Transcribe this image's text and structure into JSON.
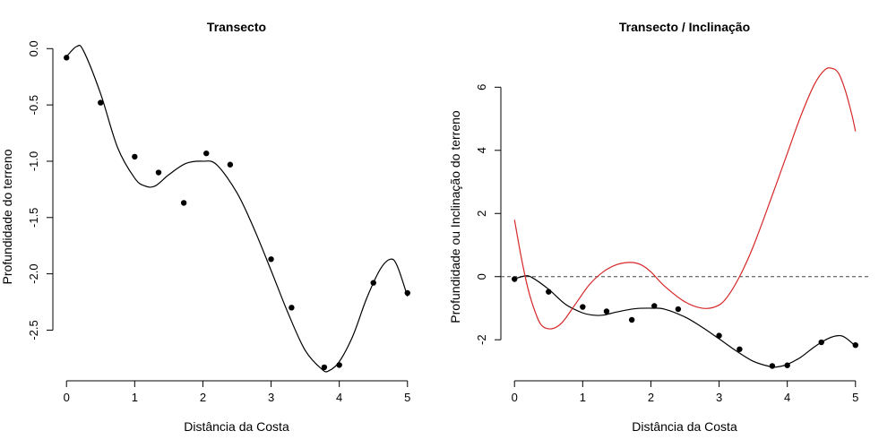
{
  "chart_data": [
    {
      "type": "scatter",
      "title": "Transecto",
      "xlabel": "Distância da Costa",
      "ylabel": "Profundidade do terreno",
      "xlim": [
        -0.2,
        5.2
      ],
      "ylim": [
        -2.95,
        0.05
      ],
      "xticks": [
        "0",
        "1",
        "2",
        "3",
        "4",
        "5"
      ],
      "yticks": [
        "0.0",
        "-0.5",
        "-1.0",
        "-1.5",
        "-2.0",
        "-2.5"
      ],
      "series": [
        {
          "style": "points",
          "x": [
            0,
            0.5,
            1,
            1.35,
            1.72,
            2.05,
            2.4,
            3.0,
            3.3,
            3.78,
            4.0,
            4.5,
            5.0
          ],
          "y": [
            -0.08,
            -0.48,
            -0.96,
            -1.1,
            -1.37,
            -0.93,
            -1.03,
            -1.87,
            -2.3,
            -2.83,
            -2.81,
            -2.08,
            -2.17
          ]
        },
        {
          "style": "curve",
          "color": "#000000",
          "x": [
            0,
            0.15,
            0.25,
            0.5,
            0.75,
            1.0,
            1.15,
            1.3,
            1.5,
            1.75,
            2.0,
            2.2,
            2.5,
            2.75,
            3.0,
            3.25,
            3.5,
            3.75,
            3.85,
            4.0,
            4.2,
            4.4,
            4.6,
            4.75,
            4.85,
            5.0
          ],
          "y": [
            -0.07,
            0.02,
            -0.02,
            -0.4,
            -0.88,
            -1.15,
            -1.22,
            -1.22,
            -1.12,
            -1.02,
            -1.0,
            -1.03,
            -1.28,
            -1.6,
            -1.97,
            -2.35,
            -2.68,
            -2.85,
            -2.86,
            -2.78,
            -2.55,
            -2.22,
            -1.96,
            -1.87,
            -1.93,
            -2.2
          ]
        }
      ]
    },
    {
      "type": "line",
      "title": "Transecto / Inclinação",
      "xlabel": "Distância da Costa",
      "ylabel": "Profundidade ou Inclinação do terreno",
      "xlim": [
        -0.2,
        5.2
      ],
      "ylim": [
        -3.3,
        7.4
      ],
      "xticks": [
        "0",
        "1",
        "2",
        "3",
        "4",
        "5"
      ],
      "yticks": [
        "-2",
        "0",
        "2",
        "4",
        "6"
      ],
      "reference_line": {
        "y": 0,
        "style": "dashed"
      },
      "series": [
        {
          "style": "points",
          "x": [
            0,
            0.5,
            1,
            1.35,
            1.72,
            2.05,
            2.4,
            3.0,
            3.3,
            3.78,
            4.0,
            4.5,
            5.0
          ],
          "y": [
            -0.08,
            -0.48,
            -0.96,
            -1.1,
            -1.37,
            -0.93,
            -1.03,
            -1.87,
            -2.3,
            -2.83,
            -2.81,
            -2.08,
            -2.17
          ]
        },
        {
          "style": "curve",
          "color": "#000000",
          "x": [
            0,
            0.15,
            0.25,
            0.5,
            0.75,
            1.0,
            1.15,
            1.3,
            1.5,
            1.75,
            2.0,
            2.2,
            2.5,
            2.75,
            3.0,
            3.25,
            3.5,
            3.75,
            3.85,
            4.0,
            4.2,
            4.4,
            4.6,
            4.75,
            4.85,
            5.0
          ],
          "y": [
            -0.07,
            0.02,
            -0.02,
            -0.4,
            -0.88,
            -1.15,
            -1.22,
            -1.22,
            -1.12,
            -1.02,
            -1.0,
            -1.03,
            -1.28,
            -1.6,
            -1.97,
            -2.35,
            -2.68,
            -2.85,
            -2.86,
            -2.78,
            -2.55,
            -2.22,
            -1.96,
            -1.87,
            -1.93,
            -2.2
          ]
        },
        {
          "style": "curve",
          "color": "#d62728",
          "x": [
            0,
            0.1,
            0.2,
            0.3,
            0.4,
            0.55,
            0.7,
            0.9,
            1.1,
            1.3,
            1.5,
            1.7,
            1.85,
            2.0,
            2.2,
            2.5,
            2.75,
            2.95,
            3.1,
            3.3,
            3.5,
            3.75,
            4.0,
            4.2,
            4.4,
            4.55,
            4.65,
            4.75,
            4.85,
            4.95,
            5.0
          ],
          "y": [
            1.8,
            0.6,
            -0.4,
            -1.1,
            -1.55,
            -1.65,
            -1.45,
            -0.85,
            -0.25,
            0.15,
            0.38,
            0.45,
            0.38,
            0.15,
            -0.3,
            -0.8,
            -1.0,
            -0.95,
            -0.7,
            0.0,
            0.95,
            2.4,
            3.9,
            5.1,
            6.1,
            6.55,
            6.6,
            6.45,
            5.9,
            5.1,
            4.6
          ]
        }
      ]
    }
  ]
}
